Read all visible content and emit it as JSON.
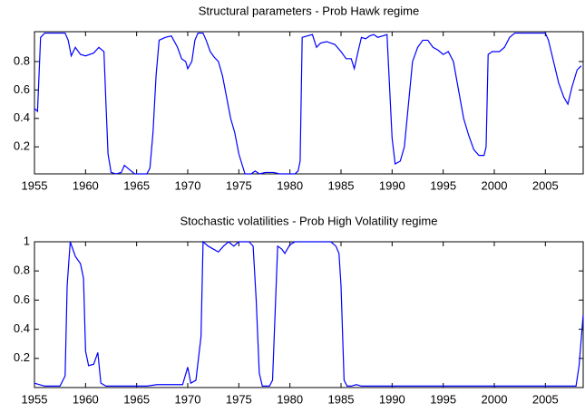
{
  "chart_data": [
    {
      "type": "line",
      "title": "Structural parameters - Prob Hawk regime",
      "x": [
        1955.0,
        1955.3,
        1955.6,
        1956,
        1958,
        1958.3,
        1958.6,
        1959,
        1959.5,
        1960,
        1960.8,
        1961.3,
        1961.8,
        1962,
        1962.2,
        1962.5,
        1963,
        1963.5,
        1963.8,
        1964.3,
        1964.8,
        1966,
        1966.3,
        1966.6,
        1966.9,
        1967.2,
        1967.8,
        1968.4,
        1969,
        1969.4,
        1969.8,
        1970,
        1970.4,
        1970.7,
        1971,
        1971.5,
        1971.8,
        1972.2,
        1972.6,
        1973,
        1973.4,
        1973.8,
        1974.2,
        1974.6,
        1975,
        1975.3,
        1975.6,
        1976.2,
        1976.6,
        1977,
        1977.6,
        1978.4,
        1979,
        1980.5,
        1980.8,
        1981,
        1981.2,
        1981.7,
        1982.2,
        1982.6,
        1983,
        1983.6,
        1984.4,
        1985,
        1985.5,
        1986,
        1986.3,
        1986.7,
        1987,
        1987.4,
        1987.8,
        1988.2,
        1988.6,
        1989.5,
        1990,
        1990.3,
        1990.8,
        1991.2,
        1991.6,
        1992,
        1992.5,
        1993,
        1993.5,
        1994,
        1994.5,
        1995,
        1995.5,
        1996,
        1996.5,
        1997,
        1997.5,
        1998,
        1998.5,
        1999,
        1999.2,
        1999.4,
        1999.8,
        2000.5,
        2001,
        2001.5,
        2002,
        2005,
        2005.3,
        2005.8,
        2006.3,
        2006.8,
        2007.2,
        2007.6,
        2008.1,
        2008.5
      ],
      "series": [
        {
          "color": "#0000ff",
          "values": [
            0.47,
            0.45,
            0.97,
            1.0,
            1.0,
            0.95,
            0.84,
            0.9,
            0.85,
            0.84,
            0.86,
            0.9,
            0.87,
            0.5,
            0.15,
            0.02,
            0.01,
            0.02,
            0.07,
            0.04,
            0.01,
            0.01,
            0.05,
            0.3,
            0.7,
            0.95,
            0.97,
            0.98,
            0.9,
            0.82,
            0.8,
            0.75,
            0.8,
            0.95,
            1.0,
            1.0,
            0.95,
            0.87,
            0.83,
            0.8,
            0.7,
            0.55,
            0.4,
            0.3,
            0.15,
            0.08,
            0.01,
            0.01,
            0.03,
            0.01,
            0.02,
            0.02,
            0.01,
            0.01,
            0.03,
            0.1,
            0.97,
            0.98,
            0.99,
            0.9,
            0.93,
            0.94,
            0.92,
            0.87,
            0.82,
            0.82,
            0.75,
            0.88,
            0.97,
            0.96,
            0.98,
            0.99,
            0.97,
            0.99,
            0.26,
            0.08,
            0.1,
            0.2,
            0.5,
            0.8,
            0.9,
            0.95,
            0.95,
            0.9,
            0.88,
            0.85,
            0.87,
            0.8,
            0.6,
            0.4,
            0.28,
            0.18,
            0.14,
            0.14,
            0.2,
            0.85,
            0.87,
            0.87,
            0.9,
            0.97,
            1.0,
            1.0,
            0.95,
            0.8,
            0.65,
            0.55,
            0.5,
            0.62,
            0.74,
            0.77
          ]
        }
      ],
      "xlim": [
        1955,
        2008.7
      ],
      "xticks": [
        1955,
        1960,
        1965,
        1970,
        1975,
        1980,
        1985,
        1990,
        1995,
        2000,
        2005
      ],
      "ylim": [
        0.01,
        1.01
      ],
      "yticks": [
        0.2,
        0.4,
        0.6,
        0.8
      ]
    },
    {
      "type": "line",
      "title": "Stochastic volatilities - Prob High Volatility regime",
      "x": [
        1955,
        1955.5,
        1956,
        1957.5,
        1958,
        1958.2,
        1958.5,
        1959,
        1959.5,
        1959.8,
        1960,
        1960.3,
        1960.8,
        1961.2,
        1961.5,
        1962,
        1966,
        1967,
        1969.5,
        1970,
        1970.3,
        1970.8,
        1971.3,
        1971.5,
        1972,
        1972.5,
        1973,
        1973.5,
        1974,
        1974.5,
        1975,
        1976,
        1976.4,
        1976.7,
        1977,
        1977.3,
        1978,
        1978.3,
        1978.6,
        1978.8,
        1979.2,
        1979.5,
        1980,
        1980.5,
        1984,
        1984.5,
        1984.8,
        1985,
        1985.3,
        1985.6,
        1986,
        1986.5,
        1987,
        2008,
        2008.3,
        2008.7
      ],
      "series": [
        {
          "color": "#0000ff",
          "values": [
            0.03,
            0.02,
            0.01,
            0.01,
            0.08,
            0.7,
            1.0,
            0.9,
            0.85,
            0.75,
            0.25,
            0.15,
            0.16,
            0.24,
            0.03,
            0.01,
            0.01,
            0.02,
            0.02,
            0.14,
            0.03,
            0.05,
            0.35,
            1.0,
            0.97,
            0.95,
            0.93,
            0.97,
            1.0,
            0.97,
            1.0,
            1.0,
            0.97,
            0.6,
            0.1,
            0.01,
            0.01,
            0.05,
            0.6,
            0.97,
            0.95,
            0.92,
            0.98,
            1.0,
            1.0,
            0.97,
            0.92,
            0.7,
            0.05,
            0.01,
            0.01,
            0.02,
            0.01,
            0.01,
            0.15,
            0.5
          ]
        }
      ],
      "xlim": [
        1955,
        2008.7
      ],
      "xticks": [
        1955,
        1960,
        1965,
        1970,
        1975,
        1980,
        1985,
        1990,
        1995,
        2000,
        2005
      ],
      "ylim": [
        0,
        1
      ],
      "yticks": [
        0.2,
        0.4,
        0.6,
        0.8,
        1
      ]
    }
  ]
}
